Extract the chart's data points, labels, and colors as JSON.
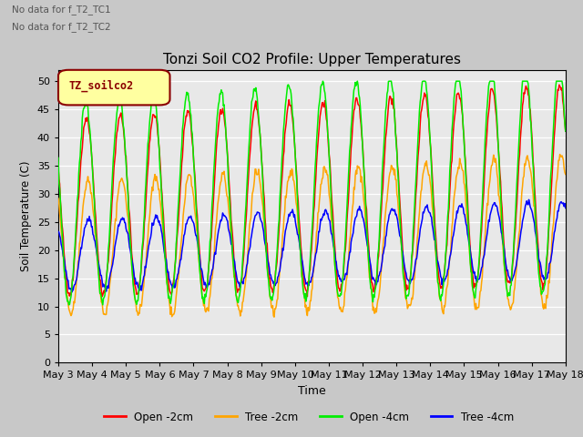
{
  "title": "Tonzi Soil CO2 Profile: Upper Temperatures",
  "xlabel": "Time",
  "ylabel": "Soil Temperature (C)",
  "ylim": [
    0,
    52
  ],
  "yticks": [
    0,
    5,
    10,
    15,
    20,
    25,
    30,
    35,
    40,
    45,
    50
  ],
  "legend_label": "TZ_soilco2",
  "legend_text_color": "#8B0000",
  "legend_box_facecolor": "#FFFFA0",
  "legend_box_edgecolor": "#8B0000",
  "note1": "No data for f_T2_TC1",
  "note2": "No data for f_T2_TC2",
  "series": {
    "open_2cm": {
      "color": "#FF0000",
      "label": "Open -2cm"
    },
    "tree_2cm": {
      "color": "#FFA500",
      "label": "Tree -2cm"
    },
    "open_4cm": {
      "color": "#00EE00",
      "label": "Open -4cm"
    },
    "tree_4cm": {
      "color": "#0000FF",
      "label": "Tree -4cm"
    }
  },
  "xtick_labels": [
    "May 3",
    "May 4",
    "May 5",
    "May 6",
    "May 7",
    "May 8",
    "May 9",
    "May 10",
    "May 11",
    "May 12",
    "May 13",
    "May 14",
    "May 15",
    "May 16",
    "May 17",
    "May 18"
  ],
  "n_days": 15,
  "fig_bg": "#C8C8C8",
  "plot_bg": "#E8E8E8"
}
